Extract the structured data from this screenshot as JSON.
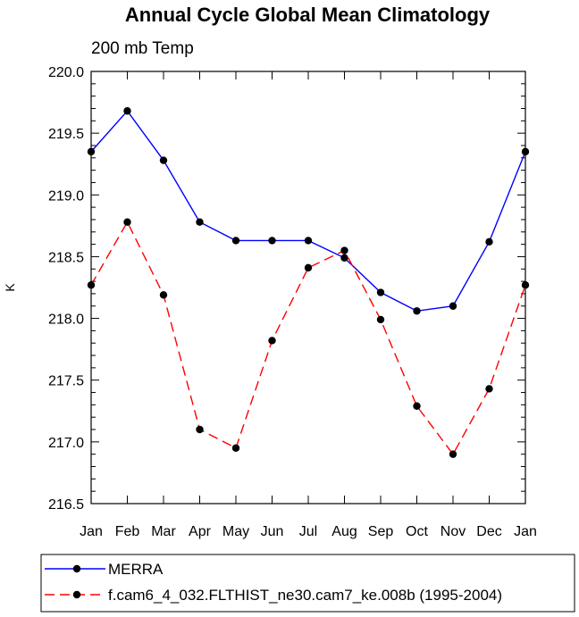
{
  "chart_data": {
    "type": "line",
    "title": "Annual Cycle Global Mean Climatology",
    "subtitle": "200 mb Temp",
    "xlabel": "",
    "ylabel": "K",
    "categories": [
      "Jan",
      "Feb",
      "Mar",
      "Apr",
      "May",
      "Jun",
      "Jul",
      "Aug",
      "Sep",
      "Oct",
      "Nov",
      "Dec",
      "Jan"
    ],
    "ylim": [
      216.5,
      220.0
    ],
    "yticks": [
      "216.5",
      "217.0",
      "217.5",
      "218.0",
      "218.5",
      "219.0",
      "219.5",
      "220.0"
    ],
    "grid": false,
    "legend_position": "bottom",
    "series": [
      {
        "name": "MERRA",
        "color": "#0000ff",
        "dash": "solid",
        "values": [
          219.35,
          219.68,
          219.28,
          218.78,
          218.63,
          218.63,
          218.63,
          218.49,
          218.21,
          218.06,
          218.1,
          218.62,
          219.35
        ]
      },
      {
        "name": "f.cam6_4_032.FLTHIST_ne30.cam7_ke.008b (1995-2004)",
        "color": "#ff0000",
        "dash": "dashed",
        "values": [
          218.27,
          218.78,
          218.19,
          217.1,
          216.95,
          217.82,
          218.41,
          218.55,
          217.99,
          217.29,
          216.9,
          217.43,
          218.27
        ]
      }
    ]
  }
}
